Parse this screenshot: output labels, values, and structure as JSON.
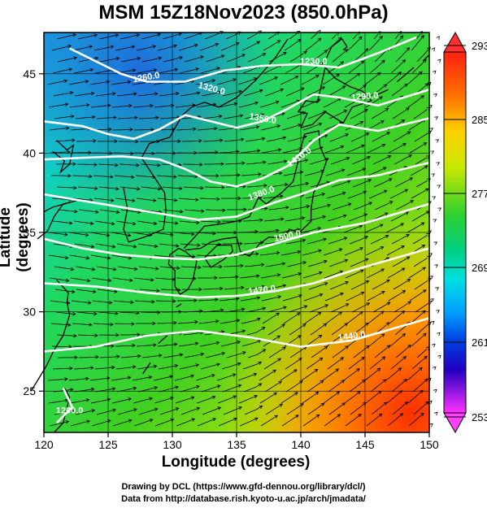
{
  "title": "MSM 15Z18Nov2023 (850.0hPa)",
  "xlabel": "Longitude (degrees)",
  "ylabel": "Latitude  (degrees)",
  "x_ticks": [
    "120",
    "125",
    "130",
    "135",
    "140",
    "145",
    "150"
  ],
  "y_ticks": [
    "25",
    "30",
    "35",
    "40",
    "45"
  ],
  "colorbar": {
    "labels": [
      "293",
      "285",
      "277",
      "269",
      "261",
      "253"
    ],
    "colors": [
      "#ff00ff",
      "#d000a0",
      "#0000d0",
      "#0050ff",
      "#00b0ff",
      "#00e0d0",
      "#00d060",
      "#30d030",
      "#90e010",
      "#d8e800",
      "#ffd000",
      "#ffa000",
      "#ff5000",
      "#ff2010"
    ]
  },
  "contour_labels": [
    "1440.0",
    "1470.0",
    "1500.0",
    "1380.0",
    "1410.0",
    "1350.0",
    "1290.0",
    "1320.0",
    "1260.0",
    "1230.0",
    "1200.0"
  ],
  "footer": {
    "line1": "Drawing by DCL (https://www.gfd-dennou.org/library/dcl/)",
    "line2": "Data from http://database.rish.kyoto-u.ac.jp/arch/jmadata/"
  }
}
